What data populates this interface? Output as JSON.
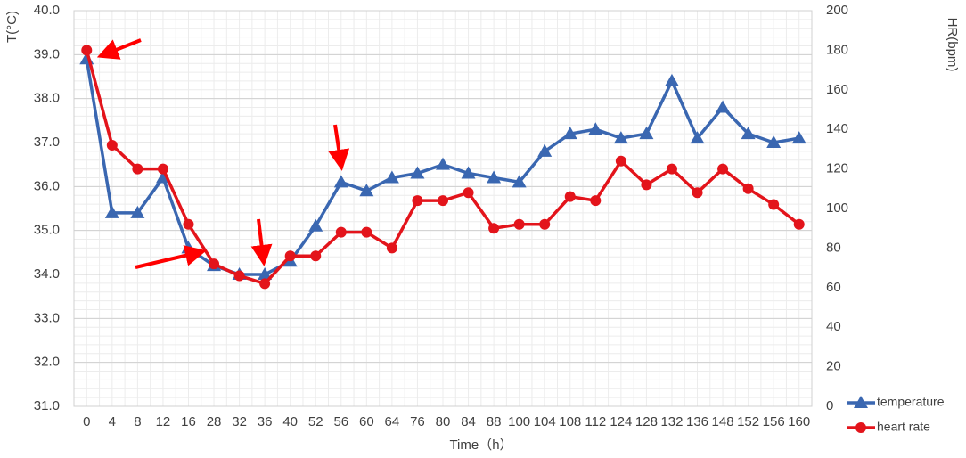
{
  "chart_data": {
    "type": "line",
    "y_label": "T(°C)",
    "y2_label": "HR(bpm)",
    "x_label": "Time（h）",
    "categories": [
      "0",
      "4",
      "8",
      "12",
      "16",
      "28",
      "32",
      "36",
      "40",
      "52",
      "56",
      "60",
      "64",
      "76",
      "80",
      "84",
      "88",
      "100",
      "104",
      "108",
      "112",
      "124",
      "128",
      "132",
      "136",
      "148",
      "152",
      "156",
      "160"
    ],
    "series": [
      {
        "name": "temperature",
        "color": "#3a67b1",
        "marker": "triangle",
        "values": [
          38.9,
          35.4,
          35.4,
          36.2,
          34.6,
          34.2,
          34.0,
          34.0,
          34.3,
          35.1,
          36.1,
          35.9,
          36.2,
          36.3,
          36.5,
          36.3,
          36.2,
          36.1,
          36.8,
          37.2,
          37.3,
          37.1,
          37.2,
          38.4,
          37.1,
          37.8,
          37.2,
          37.0,
          37.1
        ]
      },
      {
        "name": "heart rate",
        "color": "#e3141b",
        "marker": "circle",
        "axis": "y2",
        "values": [
          180,
          132,
          120,
          120,
          92,
          72,
          66,
          62,
          76,
          76,
          88,
          88,
          80,
          104,
          104,
          108,
          90,
          92,
          92,
          106,
          104,
          124,
          112,
          120,
          108,
          120,
          110,
          102,
          92
        ]
      }
    ],
    "ylim": [
      31,
      40
    ],
    "yticks": [
      {
        "value": 31,
        "label": "31.0"
      },
      {
        "value": 32,
        "label": "32.0"
      },
      {
        "value": 33,
        "label": "33.0"
      },
      {
        "value": 34,
        "label": "34.0"
      },
      {
        "value": 35,
        "label": "35.0"
      },
      {
        "value": 36,
        "label": "36.0"
      },
      {
        "value": 37,
        "label": "37.0"
      },
      {
        "value": 38,
        "label": "38.0"
      },
      {
        "value": 39,
        "label": "39.0"
      },
      {
        "value": 40,
        "label": "40.0"
      }
    ],
    "y2lim": [
      0,
      200
    ],
    "y2ticks": [
      0,
      20,
      40,
      60,
      80,
      100,
      120,
      140,
      160,
      180,
      200
    ],
    "grid": true,
    "legend": "bottom-right"
  }
}
